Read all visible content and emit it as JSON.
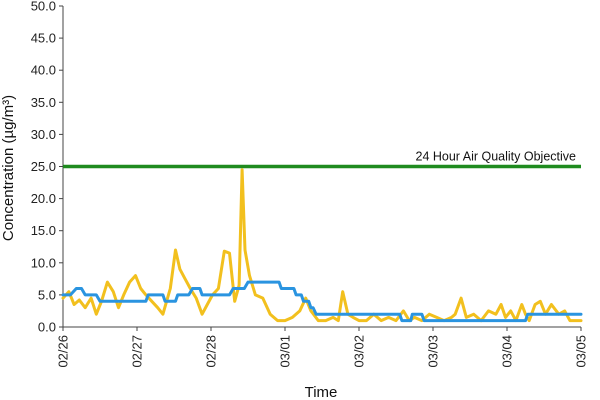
{
  "chart_data": {
    "type": "line",
    "xlabel": "Time",
    "ylabel": "Concentration (µg/m³)",
    "ylim": [
      0,
      50
    ],
    "xlim": [
      "02/26",
      "03/05"
    ],
    "y_ticks": [
      "0.0",
      "5.0",
      "10.0",
      "15.0",
      "20.0",
      "25.0",
      "30.0",
      "35.0",
      "40.0",
      "45.0",
      "50.0"
    ],
    "x_ticks": [
      "02/26",
      "02/27",
      "02/28",
      "03/01",
      "03/02",
      "03/03",
      "03/04",
      "03/05"
    ],
    "grid": false,
    "legend": "none",
    "reference_line": {
      "label": "24 Hour Air Quality Objective",
      "y": 25,
      "color": "#1f8b1f"
    },
    "series": [
      {
        "color": "#f2c01e",
        "points": [
          [
            0.0,
            4.5
          ],
          [
            0.08,
            5.5
          ],
          [
            0.15,
            3.5
          ],
          [
            0.22,
            4.2
          ],
          [
            0.3,
            3.0
          ],
          [
            0.38,
            4.5
          ],
          [
            0.45,
            2.0
          ],
          [
            0.52,
            4.0
          ],
          [
            0.6,
            7.0
          ],
          [
            0.68,
            5.5
          ],
          [
            0.75,
            3.0
          ],
          [
            0.82,
            5.0
          ],
          [
            0.9,
            7.0
          ],
          [
            0.98,
            8.0
          ],
          [
            1.05,
            6.0
          ],
          [
            1.12,
            5.0
          ],
          [
            1.2,
            4.0
          ],
          [
            1.28,
            3.0
          ],
          [
            1.35,
            2.0
          ],
          [
            1.45,
            6.0
          ],
          [
            1.52,
            12.0
          ],
          [
            1.58,
            9.0
          ],
          [
            1.65,
            7.5
          ],
          [
            1.72,
            6.0
          ],
          [
            1.8,
            4.5
          ],
          [
            1.88,
            2.0
          ],
          [
            1.95,
            3.5
          ],
          [
            2.02,
            5.0
          ],
          [
            2.1,
            6.0
          ],
          [
            2.18,
            11.8
          ],
          [
            2.25,
            11.5
          ],
          [
            2.32,
            4.0
          ],
          [
            2.38,
            6.5
          ],
          [
            2.42,
            24.5
          ],
          [
            2.46,
            12.0
          ],
          [
            2.52,
            8.0
          ],
          [
            2.6,
            5.0
          ],
          [
            2.7,
            4.5
          ],
          [
            2.8,
            2.0
          ],
          [
            2.9,
            1.0
          ],
          [
            3.0,
            1.0
          ],
          [
            3.1,
            1.5
          ],
          [
            3.2,
            2.5
          ],
          [
            3.28,
            4.5
          ],
          [
            3.35,
            2.5
          ],
          [
            3.45,
            1.0
          ],
          [
            3.55,
            1.0
          ],
          [
            3.65,
            1.5
          ],
          [
            3.72,
            1.0
          ],
          [
            3.78,
            5.5
          ],
          [
            3.85,
            2.0
          ],
          [
            3.92,
            1.5
          ],
          [
            4.0,
            1.0
          ],
          [
            4.1,
            1.0
          ],
          [
            4.2,
            2.0
          ],
          [
            4.3,
            1.0
          ],
          [
            4.4,
            1.5
          ],
          [
            4.5,
            1.0
          ],
          [
            4.6,
            2.5
          ],
          [
            4.68,
            1.0
          ],
          [
            4.75,
            1.5
          ],
          [
            4.85,
            1.0
          ],
          [
            4.95,
            2.0
          ],
          [
            5.05,
            1.5
          ],
          [
            5.15,
            1.0
          ],
          [
            5.25,
            1.5
          ],
          [
            5.3,
            2.0
          ],
          [
            5.38,
            4.5
          ],
          [
            5.45,
            1.5
          ],
          [
            5.55,
            2.0
          ],
          [
            5.65,
            1.0
          ],
          [
            5.75,
            2.5
          ],
          [
            5.85,
            2.0
          ],
          [
            5.92,
            3.5
          ],
          [
            5.98,
            1.5
          ],
          [
            6.05,
            2.5
          ],
          [
            6.12,
            1.0
          ],
          [
            6.2,
            3.5
          ],
          [
            6.25,
            2.0
          ],
          [
            6.3,
            1.0
          ],
          [
            6.38,
            3.5
          ],
          [
            6.45,
            4.0
          ],
          [
            6.52,
            2.0
          ],
          [
            6.6,
            3.5
          ],
          [
            6.7,
            2.0
          ],
          [
            6.78,
            2.5
          ],
          [
            6.85,
            1.0
          ],
          [
            6.92,
            1.0
          ],
          [
            7.0,
            1.0
          ]
        ]
      },
      {
        "color": "#2a94e0",
        "points": [
          [
            0.0,
            5.0
          ],
          [
            0.1,
            5.0
          ],
          [
            0.18,
            6.0
          ],
          [
            0.25,
            6.0
          ],
          [
            0.3,
            5.0
          ],
          [
            0.45,
            5.0
          ],
          [
            0.5,
            4.0
          ],
          [
            1.12,
            4.0
          ],
          [
            1.15,
            5.0
          ],
          [
            1.35,
            5.0
          ],
          [
            1.38,
            4.0
          ],
          [
            1.52,
            4.0
          ],
          [
            1.55,
            5.0
          ],
          [
            1.7,
            5.0
          ],
          [
            1.75,
            6.0
          ],
          [
            1.85,
            6.0
          ],
          [
            1.88,
            5.0
          ],
          [
            2.25,
            5.0
          ],
          [
            2.3,
            6.0
          ],
          [
            2.45,
            6.0
          ],
          [
            2.5,
            7.0
          ],
          [
            2.92,
            7.0
          ],
          [
            2.95,
            6.0
          ],
          [
            3.12,
            6.0
          ],
          [
            3.15,
            5.0
          ],
          [
            3.22,
            5.0
          ],
          [
            3.25,
            4.0
          ],
          [
            3.32,
            4.0
          ],
          [
            3.35,
            3.0
          ],
          [
            3.38,
            3.0
          ],
          [
            3.42,
            2.0
          ],
          [
            4.55,
            2.0
          ],
          [
            4.58,
            1.0
          ],
          [
            4.7,
            1.0
          ],
          [
            4.72,
            2.0
          ],
          [
            4.85,
            2.0
          ],
          [
            4.88,
            1.0
          ],
          [
            6.25,
            1.0
          ],
          [
            6.28,
            2.0
          ],
          [
            7.0,
            2.0
          ]
        ]
      }
    ]
  }
}
